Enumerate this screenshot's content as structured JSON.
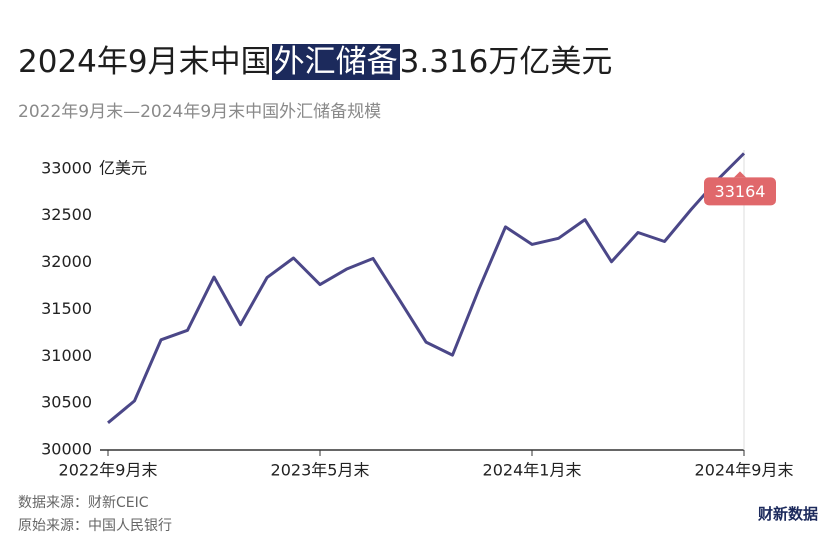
{
  "chart_data": {
    "type": "line",
    "title": [
      "2024年9月末中国",
      "外汇储备",
      "3.316万亿美元"
    ],
    "subtitle": "2022年9月末—2024年9月末中国外汇储备规模",
    "y_label": "亿美元",
    "categories": [
      "2022年9月末",
      null,
      null,
      null,
      null,
      null,
      null,
      null,
      "2023年5月末",
      null,
      null,
      null,
      null,
      null,
      null,
      null,
      "2024年1月末",
      null,
      null,
      null,
      null,
      null,
      null,
      null,
      "2024年9月末"
    ],
    "series": [
      {
        "color": "#4b4788",
        "values": [
          30290,
          30524,
          31175,
          31277,
          31845,
          31337,
          31839,
          32048,
          31765,
          31929,
          32043,
          31601,
          31151,
          31012,
          31718,
          32380,
          32193,
          32258,
          32457,
          32008,
          32320,
          32224,
          32564,
          32882,
          33164
        ]
      }
    ],
    "ylim": [
      30000,
      33200
    ],
    "yticks": [
      30000,
      30500,
      31000,
      31500,
      32000,
      32500,
      33000
    ],
    "value_label_color": "#e0686b",
    "sources": [
      "数据来源：财新CEIC",
      "原始来源：中国人民银行"
    ],
    "logo": "财新数据"
  }
}
